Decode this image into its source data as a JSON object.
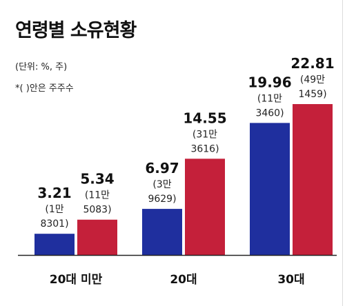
{
  "title": "연령별 소유현황",
  "unit_note": "(단위: %, 주)",
  "footnote": "*( )안은 주주수",
  "colors": {
    "series_a": "#1f2f9e",
    "series_b": "#c4203a",
    "axis": "#222222"
  },
  "chart_data": {
    "type": "bar",
    "title": "연령별 소유현황",
    "categories": [
      "20대 미만",
      "20대",
      "30대"
    ],
    "ylim": [
      0,
      24
    ],
    "grid": false,
    "series": [
      {
        "values": [
          3.21,
          6.97,
          19.96
        ],
        "value_labels": [
          "3.21",
          "6.97",
          "19.96"
        ],
        "counts": [
          [
            "(1만",
            "8301)"
          ],
          [
            "(3만",
            "9629)"
          ],
          [
            "(11만",
            "3460)"
          ]
        ]
      },
      {
        "values": [
          5.34,
          14.55,
          22.81
        ],
        "value_labels": [
          "5.34",
          "14.55",
          "22.81"
        ],
        "counts": [
          [
            "(11만",
            "5083)"
          ],
          [
            "(31만",
            "3616)"
          ],
          [
            "(49만",
            "1459)"
          ]
        ]
      }
    ]
  }
}
